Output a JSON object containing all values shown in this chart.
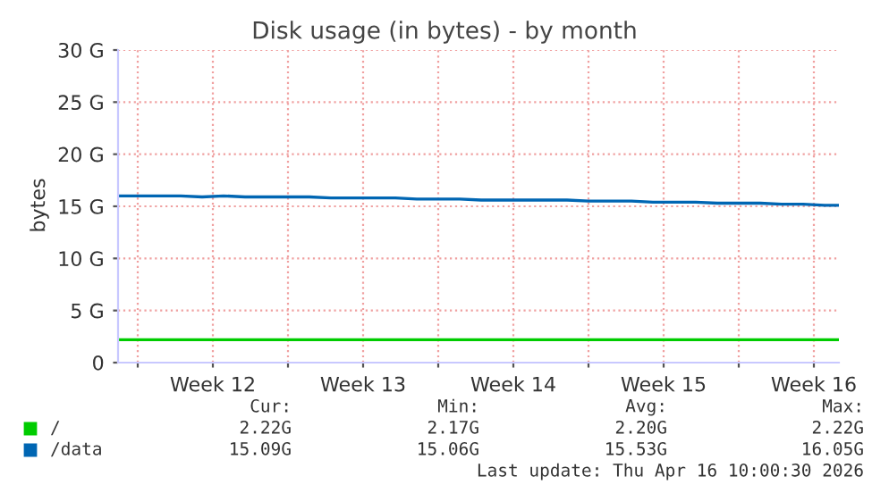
{
  "chart_data": {
    "type": "line",
    "title": "Disk usage (in bytes) - by month",
    "ylabel": "bytes",
    "x": [
      "2026-03-14T02:00",
      "2026-03-15",
      "2026-03-16",
      "2026-03-17",
      "2026-03-18",
      "2026-03-19",
      "2026-03-20",
      "2026-03-21",
      "2026-03-22",
      "2026-03-23",
      "2026-03-24",
      "2026-03-25",
      "2026-03-26",
      "2026-03-27",
      "2026-03-28",
      "2026-03-29",
      "2026-03-30",
      "2026-03-31",
      "2026-04-01",
      "2026-04-02",
      "2026-04-03",
      "2026-04-04",
      "2026-04-05",
      "2026-04-06",
      "2026-04-07",
      "2026-04-08",
      "2026-04-09",
      "2026-04-10",
      "2026-04-11",
      "2026-04-12",
      "2026-04-13",
      "2026-04-14",
      "2026-04-15",
      "2026-04-16",
      "2026-04-16T16:00"
    ],
    "series": [
      {
        "name": "/",
        "color": "#00cc00",
        "values": [
          2.2,
          2.2,
          2.2,
          2.2,
          2.2,
          2.2,
          2.2,
          2.2,
          2.2,
          2.2,
          2.2,
          2.2,
          2.2,
          2.2,
          2.2,
          2.2,
          2.2,
          2.2,
          2.2,
          2.2,
          2.2,
          2.2,
          2.2,
          2.2,
          2.2,
          2.2,
          2.2,
          2.2,
          2.2,
          2.2,
          2.2,
          2.2,
          2.2,
          2.2,
          2.2
        ]
      },
      {
        "name": "/data",
        "color": "#0066b3",
        "values": [
          16.0,
          16.0,
          16.0,
          16.0,
          15.9,
          16.0,
          15.9,
          15.9,
          15.9,
          15.9,
          15.8,
          15.8,
          15.8,
          15.8,
          15.7,
          15.7,
          15.7,
          15.6,
          15.6,
          15.6,
          15.6,
          15.6,
          15.5,
          15.5,
          15.5,
          15.4,
          15.4,
          15.4,
          15.3,
          15.3,
          15.3,
          15.2,
          15.2,
          15.1,
          15.1
        ]
      }
    ],
    "xlim": [
      "2026-03-14T02:00",
      "2026-04-16T16:00"
    ],
    "xticks": [
      {
        "value": "2026-03-15",
        "label": null
      },
      {
        "value": "2026-03-18T12:00",
        "label": "Week 12"
      },
      {
        "value": "2026-03-22",
        "label": null
      },
      {
        "value": "2026-03-25T12:00",
        "label": "Week 13"
      },
      {
        "value": "2026-03-29",
        "label": null
      },
      {
        "value": "2026-04-01T12:00",
        "label": "Week 14"
      },
      {
        "value": "2026-04-05",
        "label": null
      },
      {
        "value": "2026-04-08T12:00",
        "label": "Week 15"
      },
      {
        "value": "2026-04-12",
        "label": null
      },
      {
        "value": "2026-04-15T12:00",
        "label": "Week 16"
      }
    ],
    "ylim": [
      0,
      30
    ],
    "yticks": [
      0,
      {
        "value": 5,
        "label": "5 G"
      },
      {
        "value": 10,
        "label": "10 G"
      },
      {
        "value": 15,
        "label": "15 G"
      },
      {
        "value": 20,
        "label": "20 G"
      },
      {
        "value": 25,
        "label": "25 G"
      },
      {
        "value": 30,
        "label": "30 G"
      }
    ],
    "grid": true,
    "legend": "bottom",
    "marker": "none",
    "line_style": "solid",
    "annotations": [
      "Cur:",
      "Min:",
      "Avg:",
      "Max:",
      "2.22G",
      "2.17G",
      "2.20G",
      "2.22G",
      "15.09G",
      "15.06G",
      "15.53G",
      "16.05G",
      "Last update: Thu Apr 16 10:00:30 2026"
    ]
  }
}
